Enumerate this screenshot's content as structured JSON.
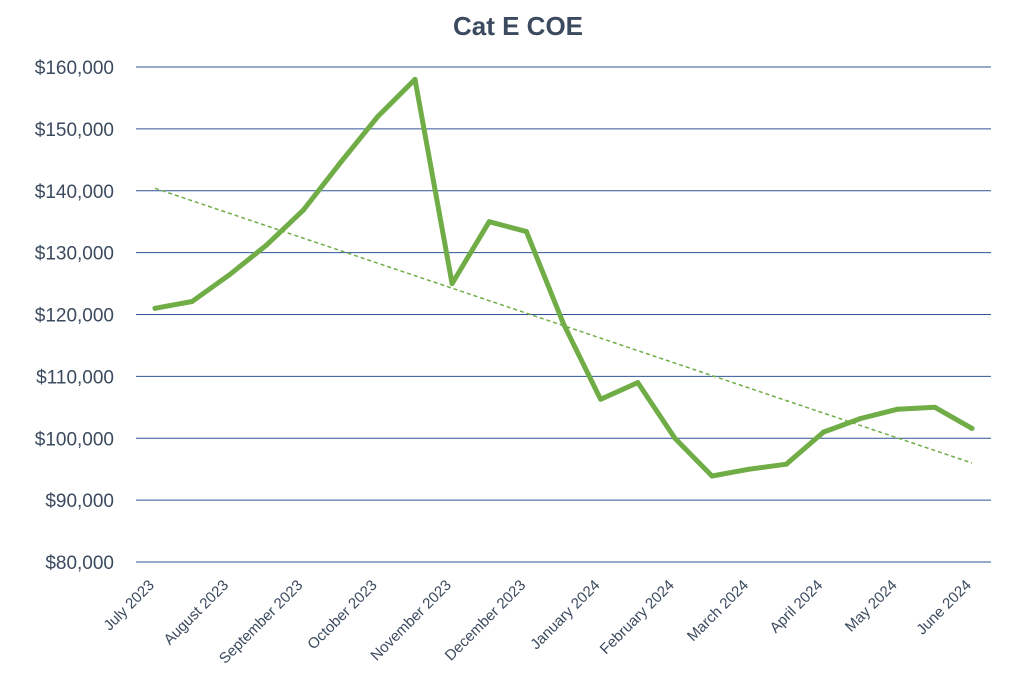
{
  "chart_data": {
    "type": "line",
    "title": "Cat E COE",
    "xlabel": "",
    "ylabel": "",
    "ylim": [
      80000,
      160000
    ],
    "y_ticks": [
      80000,
      90000,
      100000,
      110000,
      120000,
      130000,
      140000,
      150000,
      160000
    ],
    "y_tick_labels": [
      "$80,000",
      "$90,000",
      "$100,000",
      "$110,000",
      "$120,000",
      "$130,000",
      "$140,000",
      "$150,000",
      "$160,000"
    ],
    "x_tick_labels": [
      "July 2023",
      "August 2023",
      "September 2023",
      "October 2023",
      "November 2023",
      "December 2023",
      "January 2024",
      "February 2024",
      "March 2024",
      "April 2024",
      "May 2024",
      "June 2024"
    ],
    "series": [
      {
        "name": "Cat E COE",
        "color": "#70ad47",
        "values": [
          121000,
          122100,
          126400,
          131200,
          136900,
          144600,
          152000,
          158000,
          125000,
          135000,
          133400,
          118500,
          106300,
          109000,
          100000,
          93900,
          95000,
          95800,
          101000,
          103200,
          104700,
          105000,
          101600
        ]
      }
    ],
    "trendline": {
      "type": "linear",
      "style": "dashed",
      "color": "#70ad47",
      "start": 140400,
      "end": 96000
    },
    "grid": true,
    "legend": "none"
  }
}
